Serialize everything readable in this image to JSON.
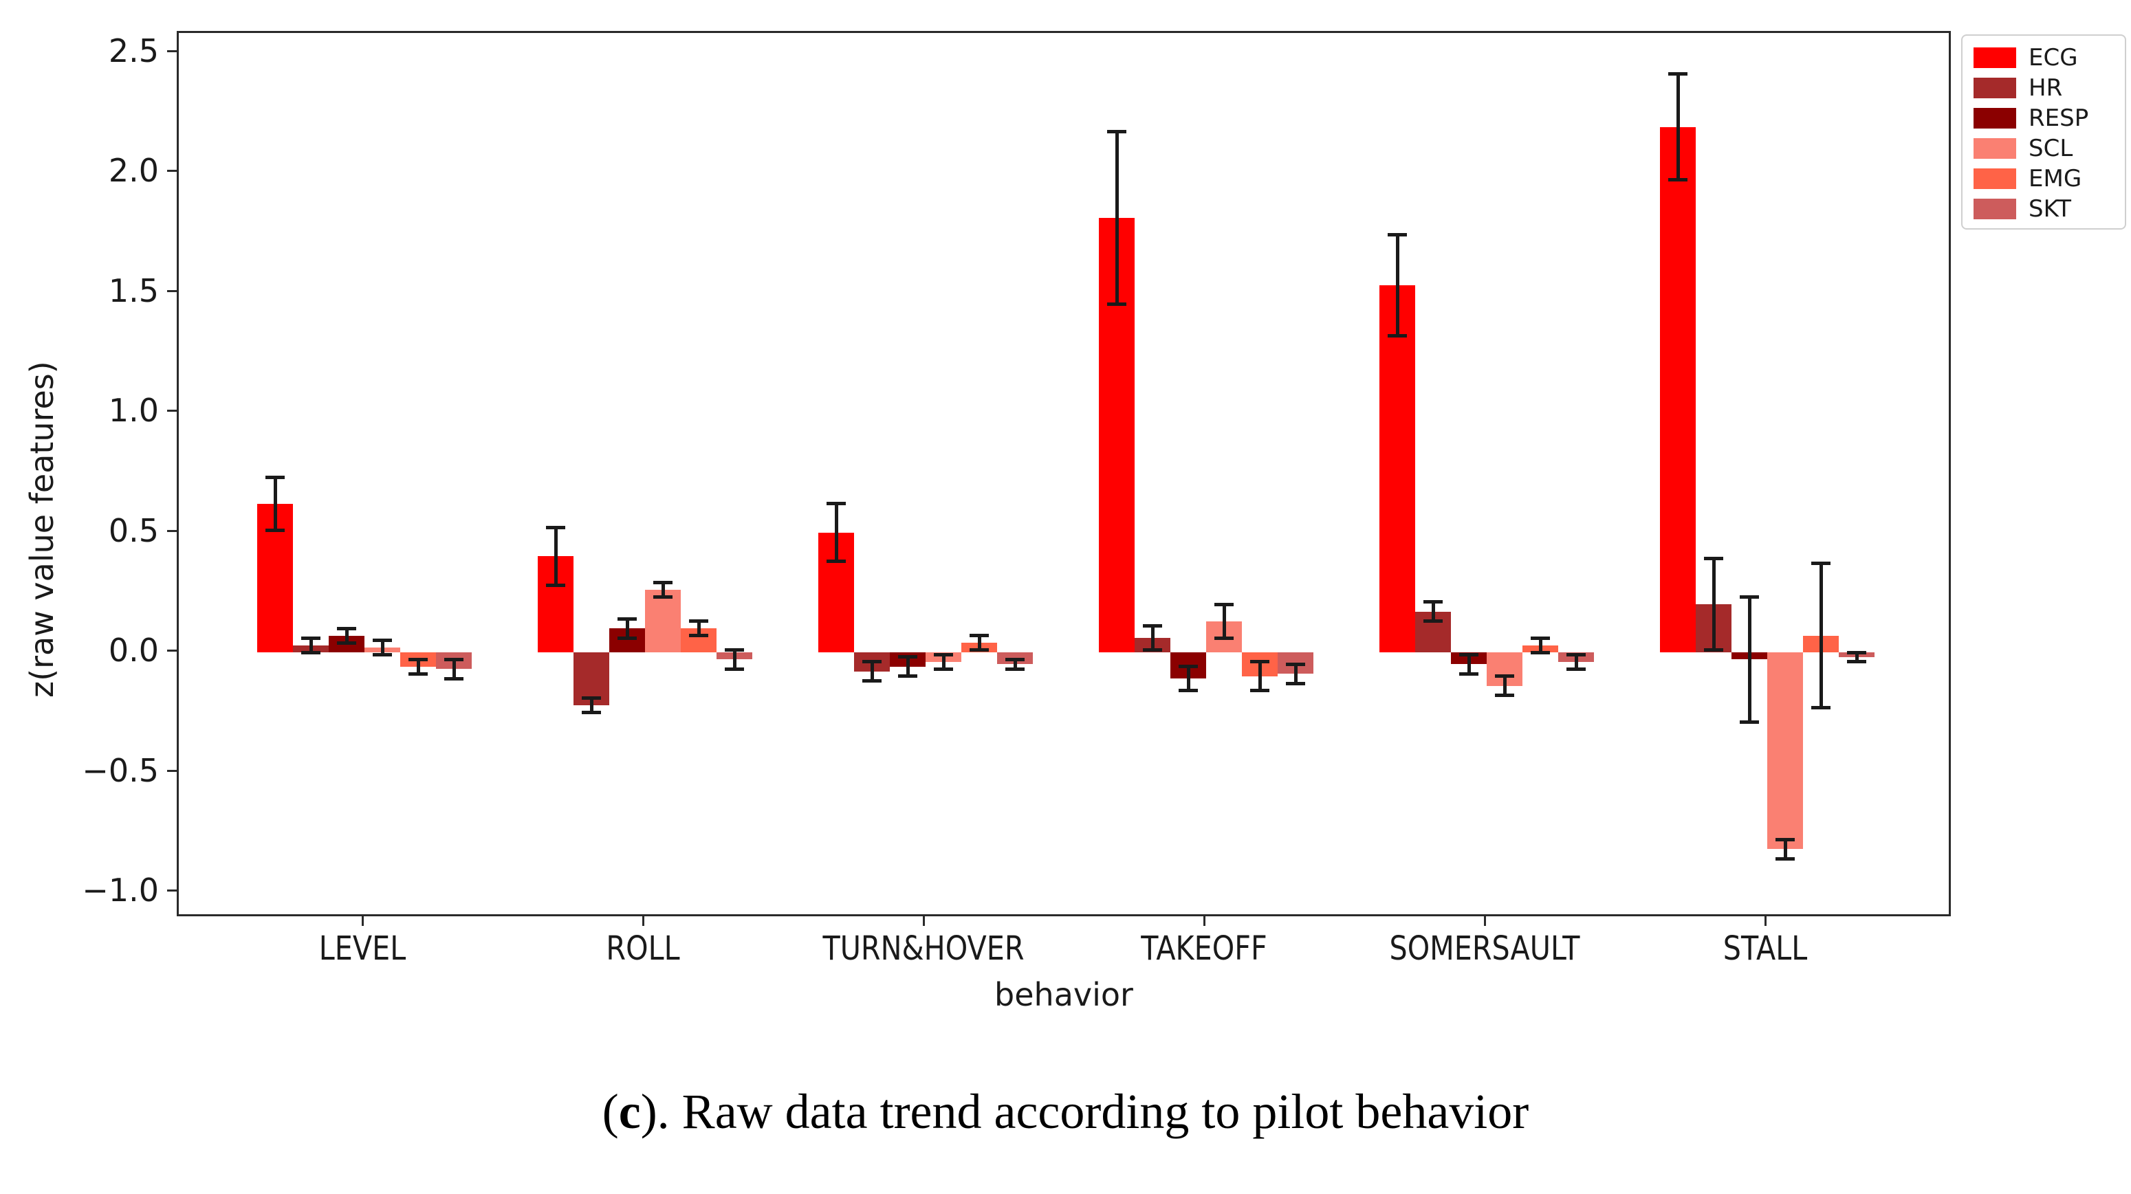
{
  "figure": {
    "ylabel": "z(raw value features)",
    "xlabel": "behavior",
    "caption": {
      "open": "(",
      "bold_letter": "c",
      "close": "). ",
      "text": "Raw data trend according to pilot behavior"
    }
  },
  "chart_data": {
    "type": "bar",
    "title": "",
    "xlabel": "behavior",
    "ylabel": "z(raw value features)",
    "categories": [
      "LEVEL",
      "ROLL",
      "TURN&HOVER",
      "TAKEOFF",
      "SOMERSAULT",
      "STALL"
    ],
    "series": [
      {
        "name": "ECG",
        "color": "#ff0000",
        "values": [
          0.62,
          0.4,
          0.5,
          1.81,
          1.53,
          2.19
        ],
        "errors": [
          0.11,
          0.12,
          0.12,
          0.36,
          0.21,
          0.22
        ]
      },
      {
        "name": "HR",
        "color": "#a52a2a",
        "values": [
          0.03,
          -0.22,
          -0.08,
          0.06,
          0.17,
          0.2
        ],
        "errors": [
          0.03,
          0.03,
          0.04,
          0.05,
          0.04,
          0.19
        ]
      },
      {
        "name": "RESP",
        "color": "#8b0000",
        "values": [
          0.07,
          0.1,
          -0.06,
          -0.11,
          -0.05,
          -0.03
        ],
        "errors": [
          0.03,
          0.04,
          0.04,
          0.05,
          0.04,
          0.26
        ]
      },
      {
        "name": "SCL",
        "color": "#fa8072",
        "values": [
          0.02,
          0.26,
          -0.04,
          0.13,
          -0.14,
          -0.82
        ],
        "errors": [
          0.03,
          0.03,
          0.03,
          0.07,
          0.04,
          0.04
        ]
      },
      {
        "name": "EMG",
        "color": "#ff6347",
        "values": [
          -0.06,
          0.1,
          0.04,
          -0.1,
          0.03,
          0.07
        ],
        "errors": [
          0.03,
          0.03,
          0.03,
          0.06,
          0.03,
          0.3
        ]
      },
      {
        "name": "SKT",
        "color": "#cd5c5c",
        "values": [
          -0.07,
          -0.03,
          -0.05,
          -0.09,
          -0.04,
          -0.02
        ],
        "errors": [
          0.04,
          0.04,
          0.02,
          0.04,
          0.03,
          0.02
        ]
      }
    ],
    "ylim": [
      -1.11,
      2.58
    ],
    "yticks": [
      2.5,
      2.0,
      1.5,
      1.0,
      0.5,
      0.0,
      -0.5,
      -1.0
    ],
    "ytick_labels": [
      "2.5",
      "2.0",
      "1.5",
      "1.0",
      "0.5",
      "0.0",
      "−0.5",
      "−1.0"
    ],
    "grid": false,
    "error_bars": true,
    "legend_position": "upper right outside"
  }
}
